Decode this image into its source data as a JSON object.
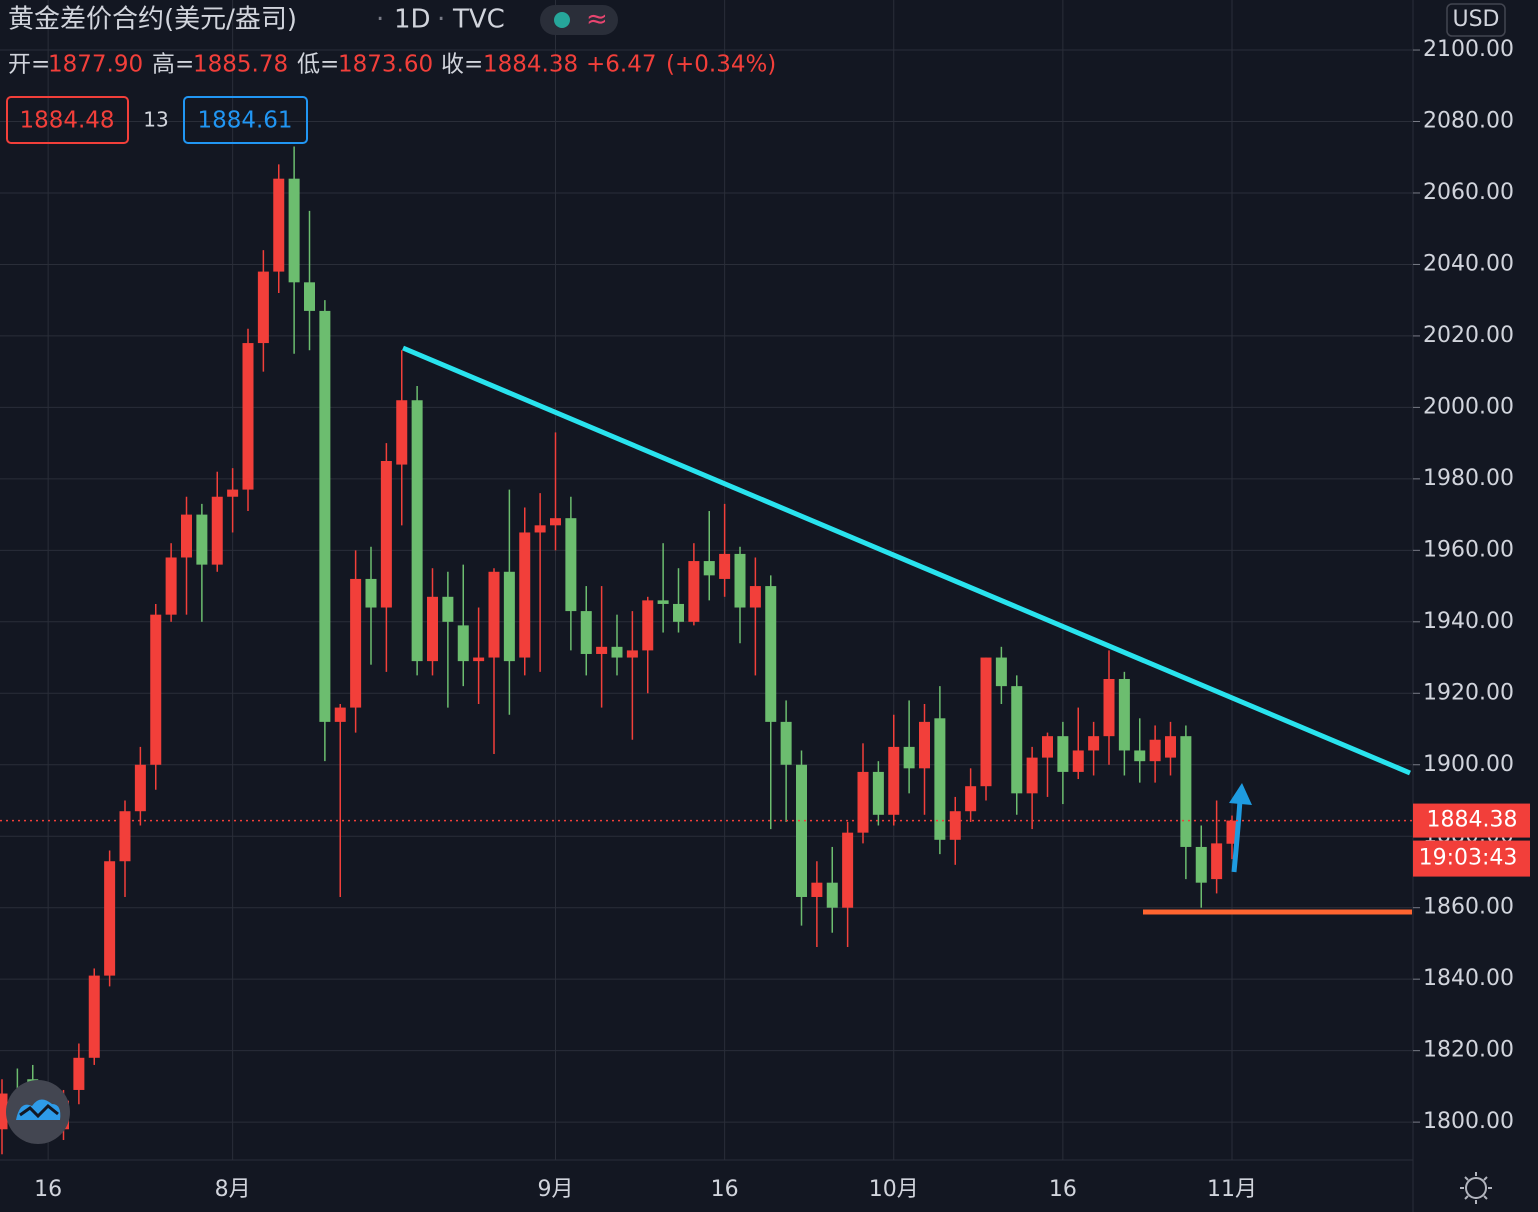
{
  "header": {
    "symbol": "黄金差价合约(美元/盎司)",
    "sep1": "·",
    "interval": "1D",
    "sep2": "·",
    "source": "TVC",
    "wave": "≈",
    "ohlc": [
      {
        "label": "开=",
        "value": "1877.90"
      },
      {
        "label": "高=",
        "value": "1885.78"
      },
      {
        "label": "低=",
        "value": "1873.60"
      },
      {
        "label": "收=",
        "value": "1884.38"
      }
    ],
    "change": "+6.47",
    "change_pct": "(+0.34%)",
    "bid": "1884.48",
    "spread": "13",
    "ask": "1884.61",
    "currency": "USD",
    "countdown": "19:03:43"
  },
  "chart_data": {
    "type": "candlestick",
    "grid": true,
    "up_color": "#f23f3a",
    "down_color": "#6cbd6f",
    "ylim": [
      1789.4,
      2114
    ],
    "yticks": [
      {
        "value": 1800,
        "label": "1800.00"
      },
      {
        "value": 1820,
        "label": "1820.00"
      },
      {
        "value": 1840,
        "label": "1840.00"
      },
      {
        "value": 1860,
        "label": "1860.00"
      },
      {
        "value": 1880,
        "label": "1880.00"
      },
      {
        "value": 1900,
        "label": "1900.00"
      },
      {
        "value": 1920,
        "label": "1920.00"
      },
      {
        "value": 1940,
        "label": "1940.00"
      },
      {
        "value": 1960,
        "label": "1960.00"
      },
      {
        "value": 1980,
        "label": "1980.00"
      },
      {
        "value": 2000,
        "label": "2000.00"
      },
      {
        "value": 2020,
        "label": "2020.00"
      },
      {
        "value": 2040,
        "label": "2040.00"
      },
      {
        "value": 2060,
        "label": "2060.00"
      },
      {
        "value": 2080,
        "label": "2080.00"
      },
      {
        "value": 2100,
        "label": "2100.00"
      }
    ],
    "categories": [
      null,
      null,
      null,
      "16",
      null,
      null,
      null,
      null,
      null,
      null,
      null,
      null,
      null,
      null,
      null,
      "8月",
      null,
      null,
      null,
      null,
      null,
      null,
      null,
      null,
      null,
      null,
      null,
      null,
      null,
      null,
      null,
      null,
      null,
      null,
      null,
      null,
      "9月",
      null,
      null,
      null,
      null,
      null,
      null,
      null,
      null,
      null,
      null,
      "16",
      null,
      null,
      null,
      null,
      null,
      null,
      null,
      null,
      null,
      null,
      "10月",
      null,
      null,
      null,
      null,
      null,
      null,
      null,
      null,
      null,
      null,
      "16",
      null,
      null,
      null,
      null,
      null,
      null,
      null,
      null,
      null,
      null,
      "11月"
    ],
    "open": [
      1798,
      1808,
      1812,
      1806,
      1798,
      1809,
      1818,
      1841,
      1873,
      1887,
      1900,
      1942,
      1958,
      1970,
      1956,
      1975,
      1977,
      2018,
      2038,
      2064,
      2035,
      2027,
      1912,
      1916,
      1952,
      1944,
      1984,
      2002,
      1929,
      1947,
      1939,
      1929,
      1930,
      1954,
      1930,
      1965,
      1967,
      1969,
      1943,
      1931,
      1933,
      1930,
      1932,
      1946,
      1945,
      1940,
      1957,
      1952,
      1959,
      1944,
      1950,
      1912,
      1900,
      1863,
      1867,
      1860,
      1881,
      1898,
      1886,
      1905,
      1899,
      1913,
      1879,
      1887,
      1894,
      1930,
      1922,
      1892,
      1902,
      1908,
      1898,
      1904,
      1908,
      1924,
      1904,
      1901,
      1902,
      1908,
      1877,
      1868,
      1877.9
    ],
    "high": [
      1812,
      1815,
      1816,
      1810,
      1809,
      1822,
      1843,
      1876,
      1890,
      1905,
      1945,
      1962,
      1975,
      1973,
      1982,
      1983,
      2022,
      2044,
      2068,
      2073,
      2055,
      2030,
      1917,
      1960,
      1961,
      1990,
      2016,
      2006,
      1955,
      1954,
      1956,
      1944,
      1955,
      1977,
      1972,
      1976,
      1993,
      1975,
      1950,
      1950,
      1942,
      1943,
      1947,
      1962,
      1955,
      1962,
      1971,
      1973,
      1961,
      1958,
      1953,
      1918,
      1904,
      1873,
      1877,
      1884,
      1906,
      1901,
      1914,
      1918,
      1917,
      1922,
      1891,
      1899,
      1930,
      1933,
      1925,
      1905,
      1909,
      1912,
      1916,
      1912,
      1932,
      1926,
      1913,
      1911,
      1912,
      1911,
      1883,
      1890,
      1885.78
    ],
    "low": [
      1791,
      1800,
      1797,
      1796,
      1795,
      1805,
      1816,
      1838,
      1863,
      1883,
      1893,
      1940,
      1942,
      1940,
      1954,
      1965,
      1971,
      2010,
      2032,
      2015,
      2016,
      1901,
      1863,
      1909,
      1928,
      1926,
      1967,
      1925,
      1925,
      1916,
      1922,
      1917,
      1903,
      1914,
      1925,
      1926,
      1960,
      1932,
      1925,
      1916,
      1925,
      1907,
      1920,
      1937,
      1937,
      1939,
      1946,
      1947,
      1934,
      1925,
      1882,
      1884,
      1855,
      1849,
      1853,
      1849,
      1878,
      1883,
      1883,
      1892,
      1886,
      1875,
      1872,
      1884,
      1890,
      1917,
      1886,
      1882,
      1891,
      1889,
      1896,
      1897,
      1900,
      1897,
      1895,
      1895,
      1897,
      1868,
      1860,
      1864,
      1873.6
    ],
    "close": [
      1808,
      1801,
      1803,
      1798,
      1806,
      1818,
      1841,
      1873,
      1887,
      1900,
      1942,
      1958,
      1970,
      1956,
      1975,
      1977,
      2018,
      2038,
      2064,
      2035,
      2027,
      1912,
      1916,
      1952,
      1944,
      1985,
      2002,
      1929,
      1947,
      1940,
      1929,
      1930,
      1954,
      1929,
      1965,
      1967,
      1969,
      1943,
      1931,
      1933,
      1930,
      1932,
      1946,
      1945,
      1940,
      1957,
      1953,
      1959,
      1944,
      1950,
      1912,
      1900,
      1863,
      1867,
      1860,
      1881,
      1898,
      1886,
      1905,
      1899,
      1912,
      1879,
      1887,
      1894,
      1930,
      1922,
      1892,
      1902,
      1908,
      1898,
      1904,
      1908,
      1924,
      1904,
      1901,
      1907,
      1908,
      1877,
      1867,
      1878,
      1884.38
    ],
    "last_price": {
      "value": 1884.38,
      "label": "1884.38"
    }
  }
}
